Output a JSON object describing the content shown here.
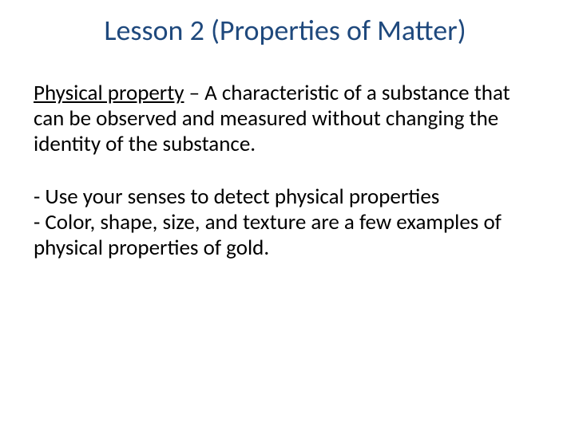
{
  "title_color": "#1f497d",
  "body_color": "#000000",
  "background_color": "#ffffff",
  "title_fontsize": 36,
  "body_fontsize": 27,
  "title": "Lesson 2 (Properties of Matter)",
  "definition": {
    "term": "Physical property",
    "sep": " – ",
    "text": "A characteristic of a substance that can be observed and measured without changing the identity of the substance."
  },
  "bullets": {
    "b1": "-  Use your senses to detect physical properties",
    "b2": "-   Color, shape, size, and texture are a few examples of physical properties of gold."
  }
}
